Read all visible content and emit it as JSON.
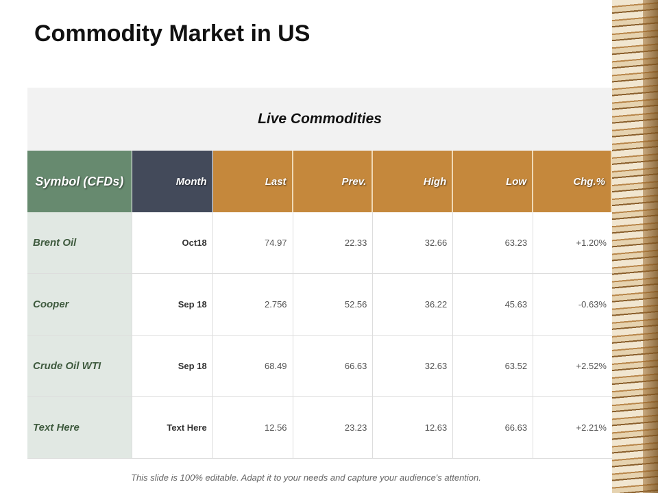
{
  "title": "Commodity Market in US",
  "table": {
    "caption": "Live Commodities",
    "headers": [
      "Symbol (CFDs)",
      "Month",
      "Last",
      "Prev.",
      "High",
      "Low",
      "Chg.%"
    ],
    "rows": [
      [
        "Brent Oil",
        "Oct18",
        "74.97",
        "22.33",
        "32.66",
        "63.23",
        "+1.20%"
      ],
      [
        "Cooper",
        "Sep 18",
        "2.756",
        "52.56",
        "36.22",
        "45.63",
        "-0.63%"
      ],
      [
        "Crude Oil WTI",
        "Sep 18",
        "68.49",
        "66.63",
        "32.63",
        "63.52",
        "+2.52%"
      ],
      [
        "Text Here",
        "Text Here",
        "12.56",
        "23.23",
        "12.63",
        "66.63",
        "+2.21%"
      ]
    ]
  },
  "footer": "This slide is 100% editable. Adapt it to your needs and capture your audience's attention.",
  "colors": {
    "symbol": "#678a6f",
    "month": "#434a5a",
    "accent": "#c5883c"
  }
}
